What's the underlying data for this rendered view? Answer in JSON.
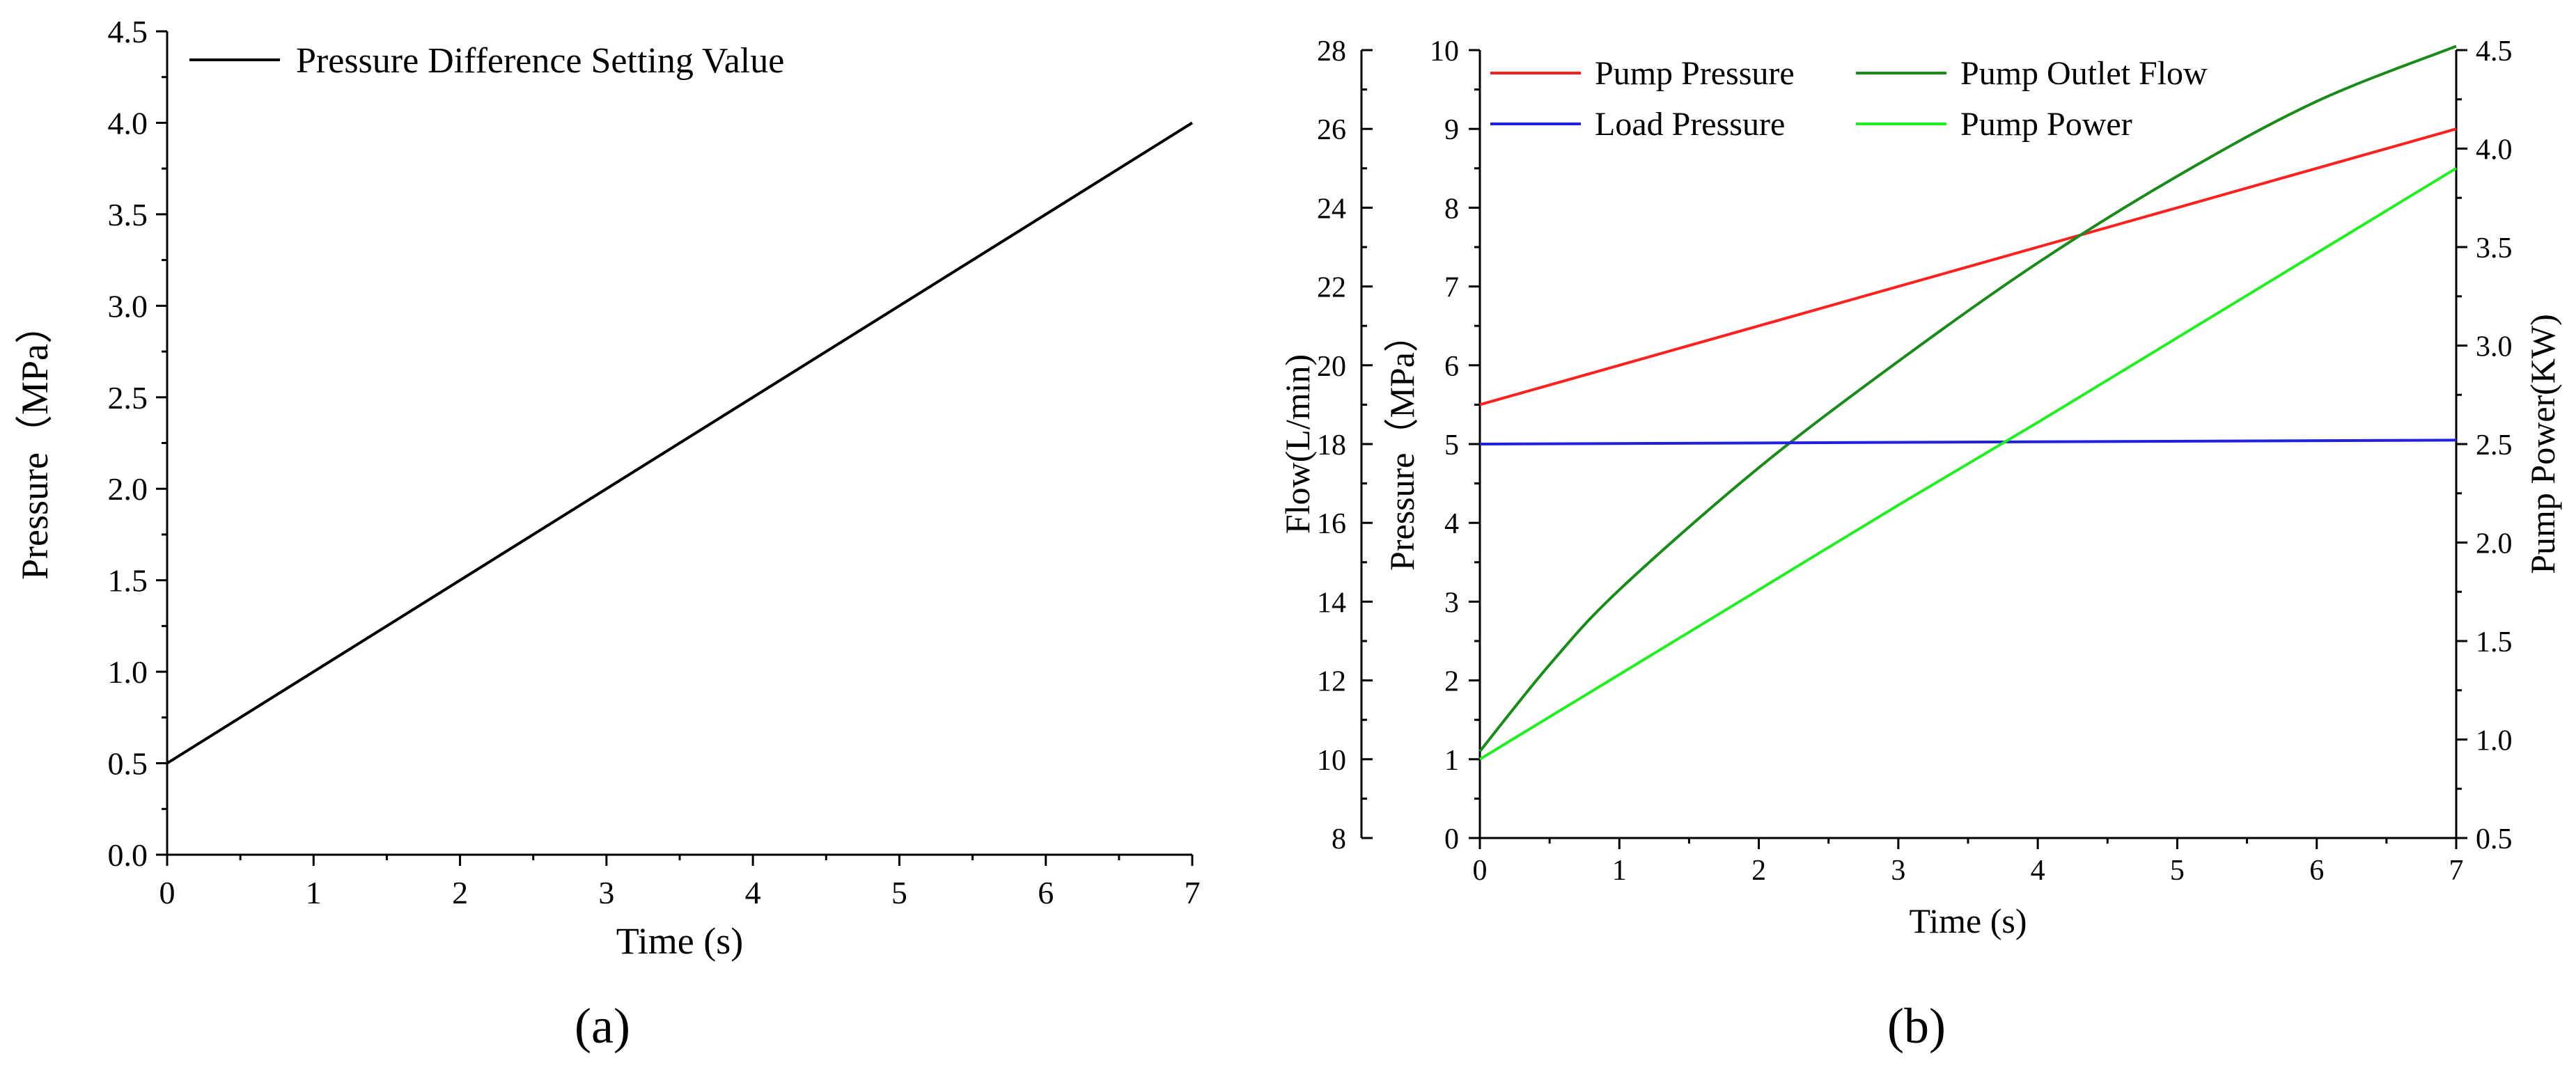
{
  "chart_data": [
    {
      "type": "line",
      "panel_label": "(a)",
      "title": "",
      "xlabel": "Time (s)",
      "ylabel": "Pressure（MPa）",
      "xlim": [
        0,
        7
      ],
      "ylim": [
        0,
        4.5
      ],
      "x_ticks": [
        "0",
        "1",
        "2",
        "3",
        "4",
        "5",
        "6",
        "7"
      ],
      "y_ticks": [
        "0.0",
        "0.5",
        "1.0",
        "1.5",
        "2.0",
        "2.5",
        "3.0",
        "3.5",
        "4.0",
        "4.5"
      ],
      "legend_position": "top-left",
      "series": [
        {
          "name": "Pressure Difference Setting Value",
          "color": "#000000",
          "x": [
            0,
            7
          ],
          "values": [
            0.5,
            4.0
          ]
        }
      ]
    },
    {
      "type": "line",
      "panel_label": "(b)",
      "title": "",
      "xlabel": "Time (s)",
      "xlim": [
        0,
        7
      ],
      "x_ticks": [
        "0",
        "1",
        "2",
        "3",
        "4",
        "5",
        "6",
        "7"
      ],
      "legend_position": "top",
      "axes": {
        "flow": {
          "label": "Flow(L/min)",
          "lim": [
            8,
            28
          ],
          "ticks": [
            "8",
            "10",
            "12",
            "14",
            "16",
            "18",
            "20",
            "22",
            "24",
            "26",
            "28"
          ]
        },
        "pressure": {
          "label": "Pressure（MPa）",
          "lim": [
            0,
            10
          ],
          "ticks": [
            "0",
            "1",
            "2",
            "3",
            "4",
            "5",
            "6",
            "7",
            "8",
            "9",
            "10"
          ]
        },
        "power": {
          "label": "Pump Power(KW)",
          "lim": [
            0.5,
            4.5
          ],
          "ticks": [
            "0.5",
            "1.0",
            "1.5",
            "2.0",
            "2.5",
            "3.0",
            "3.5",
            "4.0",
            "4.5"
          ]
        }
      },
      "series": [
        {
          "name": "Pump Pressure",
          "axis": "pressure",
          "color": "#ff2020",
          "x": [
            0,
            1,
            2,
            3,
            4,
            5,
            6,
            7
          ],
          "values": [
            5.5,
            6.0,
            6.5,
            7.0,
            7.5,
            8.0,
            8.5,
            9.0
          ]
        },
        {
          "name": "Pump Outlet Flow",
          "axis": "flow",
          "color": "#1a8a1a",
          "x": [
            0,
            0.5,
            1,
            2,
            3,
            4,
            5,
            6,
            7
          ],
          "values": [
            10.2,
            12.4,
            14.3,
            17.4,
            20.1,
            22.6,
            24.8,
            26.7,
            28.1
          ]
        },
        {
          "name": "Load Pressure",
          "axis": "pressure",
          "color": "#2020e0",
          "x": [
            0,
            7
          ],
          "values": [
            5.0,
            5.05
          ]
        },
        {
          "name": "Pump Power",
          "axis": "power",
          "color": "#22ee22",
          "x": [
            0,
            1,
            2,
            3,
            4,
            5,
            6,
            7
          ],
          "values": [
            0.9,
            1.33,
            1.76,
            2.19,
            2.61,
            3.04,
            3.47,
            3.9
          ]
        }
      ]
    }
  ]
}
